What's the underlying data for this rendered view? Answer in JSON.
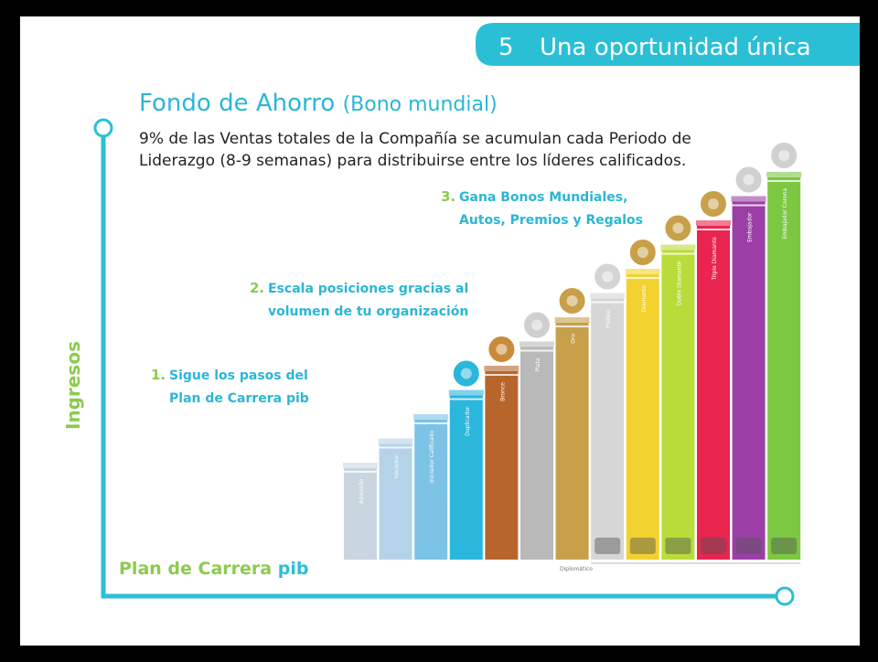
{
  "header": {
    "number": "5",
    "title": "Una oportunidad única"
  },
  "heading": {
    "title": "Fondo de Ahorro",
    "subtitle": "(Bono mundial)"
  },
  "description": [
    "9% de las Ventas totales de la Compañía se acumulan cada Periodo de",
    "Liderazgo (8-9 semanas) para distribuirse entre los líderes calificados."
  ],
  "steps": [
    {
      "number": "1.",
      "lines": [
        "Sigue los pasos del",
        "Plan de Carrera pib"
      ]
    },
    {
      "number": "2.",
      "lines": [
        "Escala posiciones gracias al",
        "volumen de tu organización"
      ]
    },
    {
      "number": "3.",
      "lines": [
        "Gana Bonos Mundiales,",
        "Autos, Premios y Regalos"
      ]
    }
  ],
  "axes": {
    "y_label": "Ingresos",
    "x_label": "Plan de Carrera",
    "x_label_brand": "pib"
  },
  "levels": [
    {
      "label": "Asociado",
      "color": "#c9d6df"
    },
    {
      "label": "Iniciador",
      "color": "#b4d3e8"
    },
    {
      "label": "Iniciador Calificado",
      "color": "#7cc3e6"
    },
    {
      "label": "Duplicador",
      "color": "#2bb6dc"
    },
    {
      "label": "Bronce",
      "color": "#b8652c"
    },
    {
      "label": "Plata",
      "color": "#b9b9b9"
    },
    {
      "label": "Oro",
      "color": "#c8a04a"
    },
    {
      "label": "Platino",
      "color": "#d6d6d6"
    },
    {
      "label": "Diamante",
      "color": "#f2d22e"
    },
    {
      "label": "Doble Diamante",
      "color": "#b9dc3a"
    },
    {
      "label": "Triple Diamante",
      "color": "#e8244f"
    },
    {
      "label": "Embajador",
      "color": "#9b3fa6"
    },
    {
      "label": "Embajador Corona",
      "color": "#7dc843"
    }
  ],
  "group_label": "Diplomático"
}
